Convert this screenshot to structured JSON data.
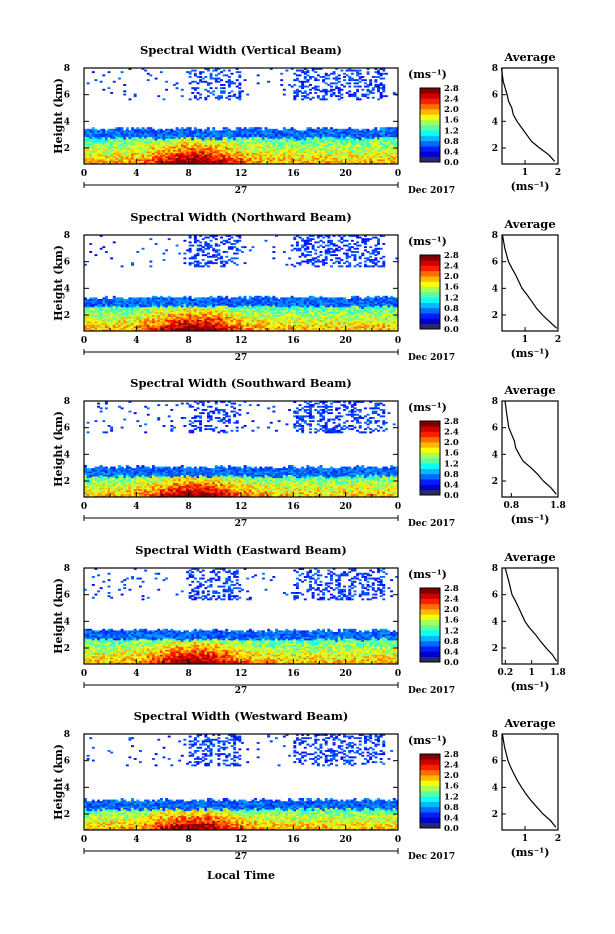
{
  "figure": {
    "xlabel": "Local Time",
    "date_label": "Dec 2017",
    "day_label": "27",
    "colorbar_unit": "(ms⁻¹)"
  },
  "chart_data": [
    {
      "type": "heatmap",
      "title": "Spectral Width (Vertical Beam)",
      "xlabel": "Local Time",
      "ylabel": "Height (km)",
      "x_ticks": [
        "0",
        "4",
        "8",
        "12",
        "16",
        "20",
        "0"
      ],
      "y_ticks": [
        "2",
        "4",
        "6",
        "8"
      ],
      "xlim": [
        0,
        24
      ],
      "ylim": [
        0.8,
        8
      ],
      "colorbar": {
        "ticks": [
          "0.0",
          "0.4",
          "0.8",
          "1.2",
          "1.6",
          "2.0",
          "2.4",
          "2.8"
        ],
        "range": [
          0,
          2.8
        ]
      },
      "layer_top_km": 3.4,
      "average_profile": {
        "title": "Average",
        "x_ticks": [
          "1",
          "2"
        ],
        "xlim": [
          0.3,
          2.0
        ],
        "xlabel": "(ms⁻¹)",
        "height": [
          8,
          7,
          6,
          5.5,
          5,
          4.5,
          4,
          3.5,
          3,
          2.5,
          2,
          1.5,
          1
        ],
        "value": [
          0.3,
          0.35,
          0.45,
          0.5,
          0.6,
          0.65,
          0.75,
          0.9,
          1.05,
          1.2,
          1.45,
          1.7,
          1.9
        ]
      }
    },
    {
      "type": "heatmap",
      "title": "Spectral Width (Northward Beam)",
      "xlabel": "Local Time",
      "ylabel": "Height (km)",
      "x_ticks": [
        "0",
        "4",
        "8",
        "12",
        "16",
        "20",
        "0"
      ],
      "y_ticks": [
        "2",
        "4",
        "6",
        "8"
      ],
      "xlim": [
        0,
        24
      ],
      "ylim": [
        0.8,
        8
      ],
      "colorbar": {
        "ticks": [
          "0.0",
          "0.4",
          "0.8",
          "1.2",
          "1.6",
          "2.0",
          "2.4",
          "2.8"
        ],
        "range": [
          0,
          2.8
        ]
      },
      "layer_top_km": 3.3,
      "average_profile": {
        "title": "Average",
        "x_ticks": [
          "1",
          "2"
        ],
        "xlim": [
          0.3,
          2.0
        ],
        "xlabel": "(ms⁻¹)",
        "height": [
          8,
          7,
          6,
          5.5,
          5,
          4.5,
          4,
          3.5,
          3,
          2.5,
          2,
          1.5,
          1
        ],
        "value": [
          0.3,
          0.4,
          0.5,
          0.6,
          0.7,
          0.8,
          0.9,
          1.05,
          1.2,
          1.35,
          1.55,
          1.75,
          1.95
        ]
      }
    },
    {
      "type": "heatmap",
      "title": "Spectral Width (Southward Beam)",
      "xlabel": "Local Time",
      "ylabel": "Height (km)",
      "x_ticks": [
        "0",
        "4",
        "8",
        "12",
        "16",
        "20",
        "0"
      ],
      "y_ticks": [
        "2",
        "4",
        "6",
        "8"
      ],
      "xlim": [
        0,
        24
      ],
      "ylim": [
        0.8,
        8
      ],
      "colorbar": {
        "ticks": [
          "0.0",
          "0.4",
          "0.8",
          "1.2",
          "1.6",
          "2.0",
          "2.4",
          "2.8"
        ],
        "range": [
          0,
          2.8
        ]
      },
      "layer_top_km": 3.0,
      "average_profile": {
        "title": "Average",
        "x_ticks": [
          "0.8",
          "1.8"
        ],
        "xlim": [
          0.6,
          1.8
        ],
        "xlabel": "(ms⁻¹)",
        "height": [
          8,
          7,
          6,
          5.5,
          5,
          4.5,
          4,
          3.5,
          3,
          2.5,
          2,
          1.5,
          1
        ],
        "value": [
          0.65,
          0.7,
          0.75,
          0.8,
          0.85,
          0.9,
          0.95,
          1.05,
          1.2,
          1.35,
          1.5,
          1.65,
          1.78
        ]
      }
    },
    {
      "type": "heatmap",
      "title": "Spectral Width (Eastward Beam)",
      "xlabel": "Local Time",
      "ylabel": "Height (km)",
      "x_ticks": [
        "0",
        "4",
        "8",
        "12",
        "16",
        "20",
        "0"
      ],
      "y_ticks": [
        "2",
        "4",
        "6",
        "8"
      ],
      "xlim": [
        0,
        24
      ],
      "ylim": [
        0.8,
        8
      ],
      "colorbar": {
        "ticks": [
          "0.0",
          "0.4",
          "0.8",
          "1.2",
          "1.6",
          "2.0",
          "2.4",
          "2.8"
        ],
        "range": [
          0,
          2.8
        ]
      },
      "layer_top_km": 3.3,
      "average_profile": {
        "title": "Average",
        "x_ticks": [
          "0.2",
          "1",
          "1.8"
        ],
        "xlim": [
          0.1,
          1.8
        ],
        "xlabel": "(ms⁻¹)",
        "height": [
          8,
          7,
          6,
          5.5,
          5,
          4.5,
          4,
          3.5,
          3,
          2.5,
          2,
          1.5,
          1
        ],
        "value": [
          0.2,
          0.3,
          0.4,
          0.5,
          0.6,
          0.7,
          0.8,
          0.95,
          1.1,
          1.25,
          1.45,
          1.62,
          1.78
        ]
      }
    },
    {
      "type": "heatmap",
      "title": "Spectral Width (Westward Beam)",
      "xlabel": "Local Time",
      "ylabel": "Height (km)",
      "x_ticks": [
        "0",
        "4",
        "8",
        "12",
        "16",
        "20",
        "0"
      ],
      "y_ticks": [
        "2",
        "4",
        "6",
        "8"
      ],
      "xlim": [
        0,
        24
      ],
      "ylim": [
        0.8,
        8
      ],
      "colorbar": {
        "ticks": [
          "0.0",
          "0.4",
          "0.8",
          "1.2",
          "1.6",
          "2.0",
          "2.4",
          "2.8"
        ],
        "range": [
          0,
          2.8
        ]
      },
      "layer_top_km": 3.0,
      "average_profile": {
        "title": "Average",
        "x_ticks": [
          "1",
          "2"
        ],
        "xlim": [
          0.3,
          2.0
        ],
        "xlabel": "(ms⁻¹)",
        "height": [
          8,
          7,
          6,
          5.5,
          5,
          4.5,
          4,
          3.5,
          3,
          2.5,
          2,
          1.5,
          1
        ],
        "value": [
          0.3,
          0.38,
          0.48,
          0.56,
          0.66,
          0.76,
          0.88,
          1.02,
          1.18,
          1.35,
          1.55,
          1.78,
          1.95
        ]
      }
    }
  ]
}
